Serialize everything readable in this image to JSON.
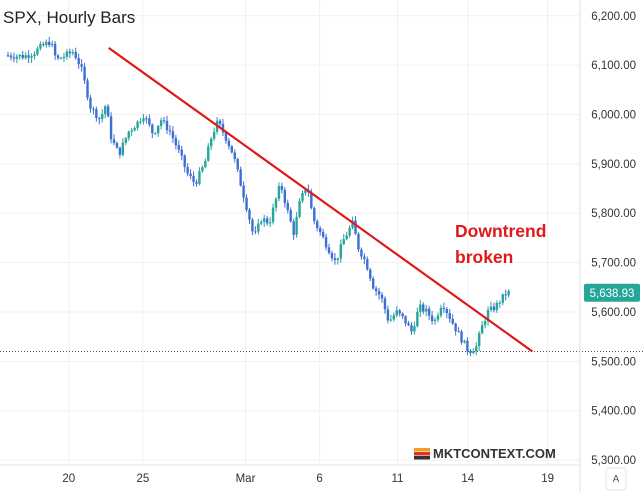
{
  "chart_data": {
    "type": "candlestick",
    "title": "SPX, Hourly Bars",
    "ylim": [
      5290,
      6232
    ],
    "y_ticks": [
      "6,200.00",
      "6,100.00",
      "6,000.00",
      "5,900.00",
      "5,800.00",
      "5,700.00",
      "5,600.00",
      "5,500.00",
      "5,400.00",
      "5,300.00"
    ],
    "x_ticks": [
      "20",
      "25",
      "Mar",
      "6",
      "11",
      "14",
      "19"
    ],
    "last_price_label": "5,638.93",
    "last_price": 5638.93,
    "reference_level": 5520,
    "grid": true,
    "colors": {
      "up": "#26a69a",
      "down": "#3d6fd6",
      "trendline": "#e01818",
      "price_tag": "#26a69a"
    },
    "trendline": {
      "start": {
        "session": 5.3,
        "price": 6135
      },
      "end": {
        "session": 27.6,
        "price": 5520
      }
    },
    "annotation": [
      "Downtrend",
      "broken"
    ],
    "watermark": "MKTCONTEXT.COM",
    "scale_button": "A",
    "price_path": [
      [
        0.0,
        6120
      ],
      [
        1.0,
        6118
      ],
      [
        1.5,
        6125
      ],
      [
        2.0,
        6140
      ],
      [
        2.4,
        6148
      ],
      [
        2.7,
        6110
      ],
      [
        3.2,
        6120
      ],
      [
        3.6,
        6128
      ],
      [
        4.0,
        6095
      ],
      [
        4.5,
        6015
      ],
      [
        5.0,
        5990
      ],
      [
        5.3,
        6020
      ],
      [
        5.6,
        5950
      ],
      [
        6.0,
        5920
      ],
      [
        6.5,
        5965
      ],
      [
        7.0,
        5985
      ],
      [
        7.3,
        6000
      ],
      [
        7.8,
        5960
      ],
      [
        8.2,
        5990
      ],
      [
        8.7,
        5965
      ],
      [
        9.2,
        5920
      ],
      [
        9.6,
        5880
      ],
      [
        10.0,
        5860
      ],
      [
        10.5,
        5900
      ],
      [
        10.9,
        5960
      ],
      [
        11.2,
        5985
      ],
      [
        11.6,
        5955
      ],
      [
        12.0,
        5920
      ],
      [
        12.4,
        5860
      ],
      [
        12.8,
        5800
      ],
      [
        13.1,
        5750
      ],
      [
        13.5,
        5790
      ],
      [
        13.9,
        5780
      ],
      [
        14.2,
        5820
      ],
      [
        14.5,
        5860
      ],
      [
        14.9,
        5800
      ],
      [
        15.2,
        5760
      ],
      [
        15.5,
        5820
      ],
      [
        15.9,
        5860
      ],
      [
        16.2,
        5790
      ],
      [
        16.6,
        5760
      ],
      [
        17.0,
        5730
      ],
      [
        17.4,
        5700
      ],
      [
        17.8,
        5745
      ],
      [
        18.3,
        5780
      ],
      [
        18.6,
        5730
      ],
      [
        19.0,
        5700
      ],
      [
        19.4,
        5650
      ],
      [
        19.8,
        5630
      ],
      [
        20.2,
        5580
      ],
      [
        20.6,
        5600
      ],
      [
        21.0,
        5585
      ],
      [
        21.4,
        5560
      ],
      [
        21.8,
        5610
      ],
      [
        22.2,
        5600
      ],
      [
        22.6,
        5580
      ],
      [
        23.0,
        5620
      ],
      [
        23.4,
        5590
      ],
      [
        23.8,
        5560
      ],
      [
        24.1,
        5540
      ],
      [
        24.4,
        5520
      ],
      [
        24.8,
        5530
      ],
      [
        25.1,
        5570
      ],
      [
        25.4,
        5600
      ],
      [
        25.8,
        5610
      ],
      [
        26.1,
        5625
      ],
      [
        26.4,
        5638.93
      ]
    ]
  }
}
